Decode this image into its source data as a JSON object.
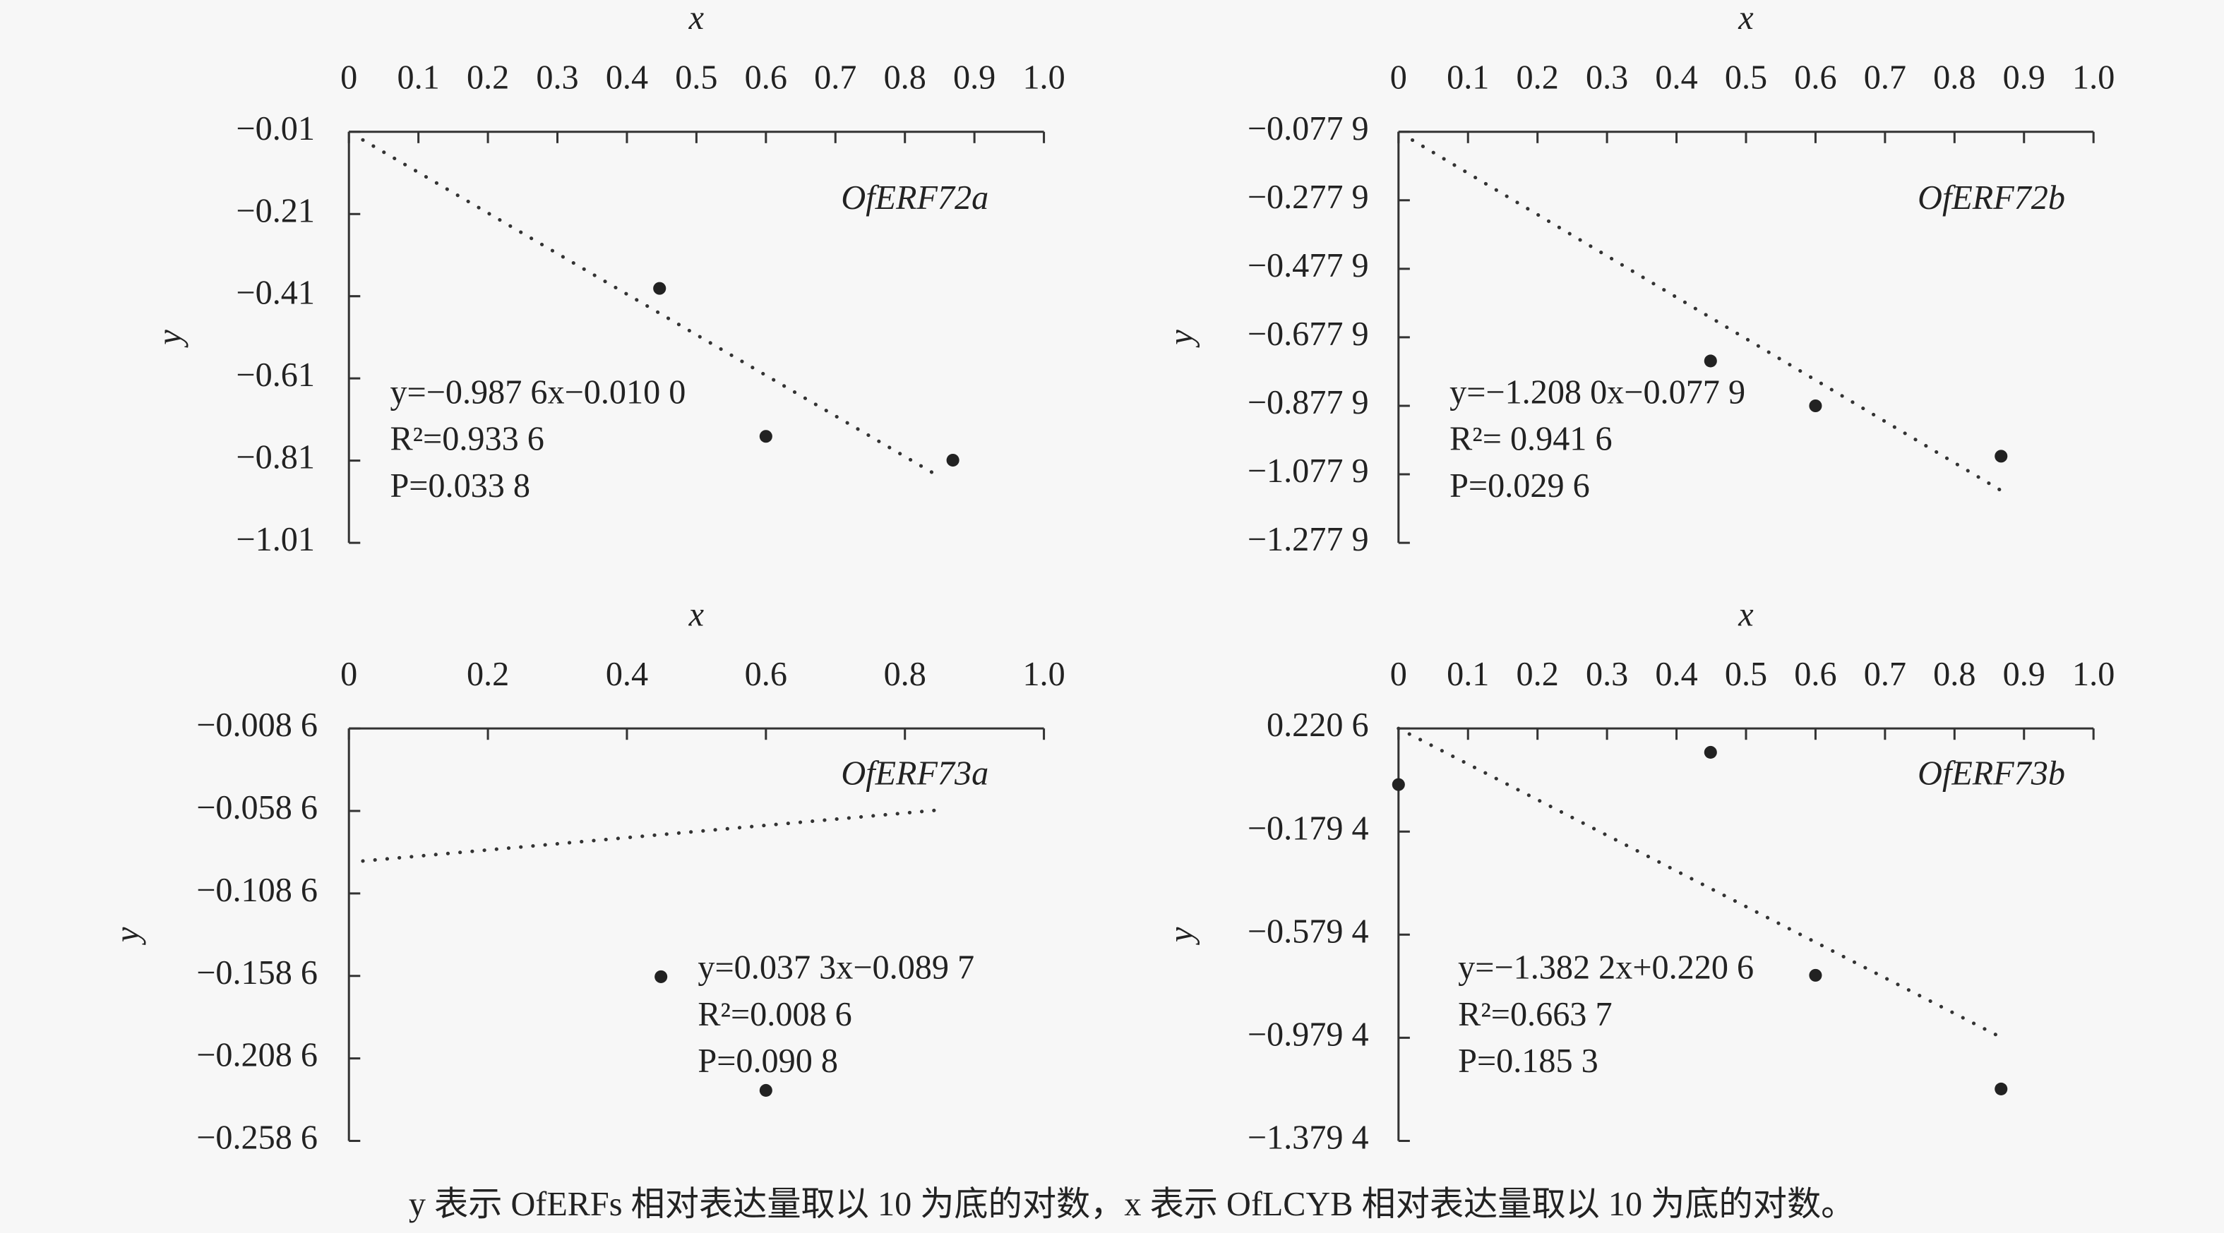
{
  "chart_data": [
    {
      "type": "scatter",
      "title": "OfERF72a",
      "xlabel": "x",
      "ylabel": "y",
      "xlim": [
        0,
        1
      ],
      "xticks": [
        0,
        0.1,
        0.2,
        0.3,
        0.4,
        0.5,
        0.6,
        0.7,
        0.8,
        0.9,
        {
          "value": 1,
          "label": "1.0"
        }
      ],
      "ylim": [
        -0.01,
        -1.01
      ],
      "yticks": [
        {
          "value": -0.01,
          "label": "−0.01"
        },
        {
          "value": -0.21,
          "label": "−0.21"
        },
        {
          "value": -0.41,
          "label": "−0.41"
        },
        {
          "value": -0.61,
          "label": "−0.61"
        },
        {
          "value": -0.81,
          "label": "−0.81"
        },
        {
          "value": -1.01,
          "label": "−1.01"
        }
      ],
      "x": [
        0.447,
        0.6,
        0.869
      ],
      "values": [
        -0.391,
        -0.751,
        -0.809
      ],
      "color": "#222222",
      "trendline": {
        "slope": -0.9876,
        "intercept": -0.01,
        "x": [
          0.02,
          0.85
        ]
      },
      "annotations": [
        "y=−0.987 6x−0.010 0",
        "R²=0.933 6",
        "P=0.033 8"
      ]
    },
    {
      "type": "scatter",
      "title": "OfERF72b",
      "xlabel": "x",
      "ylabel": "y",
      "xlim": [
        0,
        1
      ],
      "xticks": [
        0,
        0.1,
        0.2,
        0.3,
        0.4,
        0.5,
        0.6,
        0.7,
        0.8,
        0.9,
        {
          "value": 1,
          "label": "1.0"
        }
      ],
      "ylim": [
        -0.0779,
        -1.2779
      ],
      "yticks": [
        {
          "value": -0.0779,
          "label": "−0.077 9"
        },
        {
          "value": -0.2779,
          "label": "−0.277 9"
        },
        {
          "value": -0.4779,
          "label": "−0.477 9"
        },
        {
          "value": -0.6779,
          "label": "−0.677 9"
        },
        {
          "value": -0.8779,
          "label": "−0.877 9"
        },
        {
          "value": -1.0779,
          "label": "−1.077 9"
        },
        {
          "value": -1.2779,
          "label": "−1.277 9"
        }
      ],
      "x": [
        0.449,
        0.6,
        0.867
      ],
      "values": [
        -0.747,
        -0.878,
        -1.025
      ],
      "color": "#222222",
      "trendline": {
        "slope": -1.208,
        "intercept": -0.0779,
        "x": [
          0.02,
          0.87
        ]
      },
      "annotations": [
        "y=−1.208 0x−0.077 9",
        "R²= 0.941 6",
        "P=0.029 6"
      ]
    },
    {
      "type": "scatter",
      "title": "OfERF73a",
      "xlabel": "x",
      "ylabel": "y",
      "xlim": [
        0,
        1
      ],
      "xticks": [
        0,
        0.2,
        0.4,
        0.6,
        0.8,
        {
          "value": 1,
          "label": "1.0"
        }
      ],
      "ylim": [
        -0.0086,
        -0.2586
      ],
      "yticks": [
        {
          "value": -0.0086,
          "label": "−0.008 6"
        },
        {
          "value": -0.0586,
          "label": "−0.058 6"
        },
        {
          "value": -0.1086,
          "label": "−0.108 6"
        },
        {
          "value": -0.1586,
          "label": "−0.158 6"
        },
        {
          "value": -0.2086,
          "label": "−0.208 6"
        },
        {
          "value": -0.2586,
          "label": "−0.258 6"
        }
      ],
      "x": [
        0.449,
        0.6
      ],
      "values": [
        -0.1591,
        -0.228
      ],
      "color": "#222222",
      "trendline": {
        "slope": 0.0373,
        "intercept": -0.0897,
        "x": [
          0.02,
          0.85
        ]
      },
      "annotations": [
        "y=0.037 3x−0.089 7",
        "R²=0.008 6",
        "P=0.090 8"
      ]
    },
    {
      "type": "scatter",
      "title": "OfERF73b",
      "xlabel": "x",
      "ylabel": "y",
      "xlim": [
        0,
        1
      ],
      "xticks": [
        0,
        0.1,
        0.2,
        0.3,
        0.4,
        0.5,
        0.6,
        0.7,
        0.8,
        0.9,
        {
          "value": 1,
          "label": "1.0"
        }
      ],
      "ylim": [
        0.2206,
        -1.3794
      ],
      "yticks": [
        {
          "value": 0.2206,
          "label": "0.220 6"
        },
        {
          "value": -0.1794,
          "label": "−0.179 4"
        },
        {
          "value": -0.5794,
          "label": "−0.579 4"
        },
        {
          "value": -0.9794,
          "label": "−0.979 4"
        },
        {
          "value": -1.3794,
          "label": "−1.379 4"
        }
      ],
      "x": [
        0,
        0.449,
        0.6,
        0.867
      ],
      "values": [
        0.0029,
        0.128,
        -0.737,
        -1.178
      ],
      "color": "#222222",
      "trendline": {
        "slope": -1.3822,
        "intercept": 0.2206,
        "x": [
          0.0,
          0.87
        ]
      },
      "annotations": [
        "y=−1.382 2x+0.220 6",
        "R²=0.663 7",
        "P=0.185 3"
      ]
    }
  ],
  "caption": "y 表示 OfERFs 相对表达量取以 10 为底的对数，x 表示 OfLCYB 相对表达量取以 10 为底的对数。"
}
